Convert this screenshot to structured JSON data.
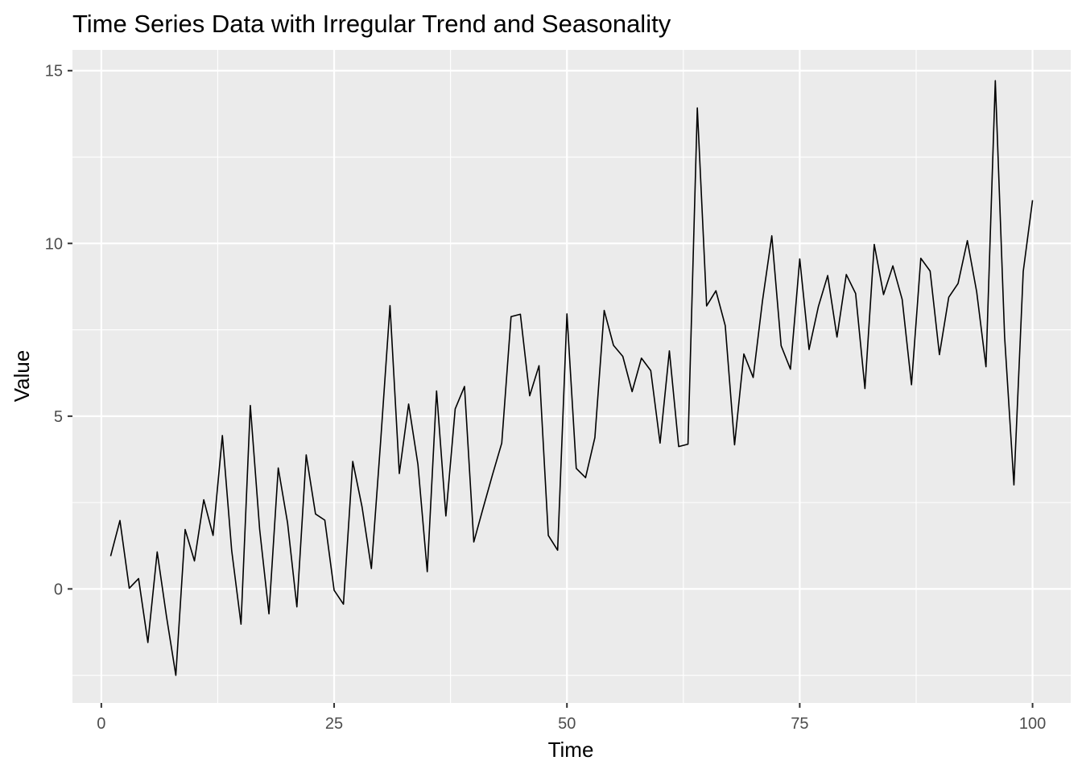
{
  "chart_data": {
    "type": "line",
    "title": "Time Series Data with Irregular Trend and Seasonality",
    "xlabel": "Time",
    "ylabel": "Value",
    "xlim": [
      -3.1,
      104.1
    ],
    "ylim": [
      -3.3,
      15.6
    ],
    "x_ticks": [
      0,
      25,
      50,
      75,
      100
    ],
    "x_tick_labels": [
      "0",
      "25",
      "50",
      "75",
      "100"
    ],
    "y_ticks": [
      0,
      5,
      10,
      15
    ],
    "y_tick_labels": [
      "0",
      "5",
      "10",
      "15"
    ],
    "grid": true,
    "colors": {
      "panel": "#ebebeb",
      "grid": "#ffffff",
      "line": "#000000",
      "tick_text": "#4d4d4d",
      "tick_mark": "#333333"
    },
    "series": [
      {
        "x": [
          1,
          2,
          3,
          4,
          5,
          6,
          7,
          8,
          9,
          10,
          11,
          12,
          13,
          14,
          15,
          16,
          17,
          18,
          19,
          20,
          21,
          22,
          23,
          24,
          25,
          26,
          27,
          28,
          29,
          30,
          31,
          32,
          33,
          34,
          35,
          36,
          37,
          38,
          39,
          40,
          41,
          42,
          43,
          44,
          45,
          46,
          47,
          48,
          49,
          50,
          51,
          52,
          53,
          54,
          55,
          56,
          57,
          58,
          59,
          60,
          61,
          62,
          63,
          64,
          65,
          66,
          67,
          68,
          69,
          70,
          71,
          72,
          73,
          74,
          75,
          76,
          77,
          78,
          79,
          80,
          81,
          82,
          83,
          84,
          85,
          86,
          87,
          88,
          89,
          90,
          91,
          92,
          93,
          94,
          95,
          96,
          97,
          98,
          99,
          100
        ],
        "values": [
          0.95,
          1.98,
          0.02,
          0.3,
          -1.55,
          1.07,
          -0.8,
          -2.5,
          1.72,
          0.81,
          2.58,
          1.55,
          4.44,
          1.11,
          -1.02,
          5.31,
          1.73,
          -0.72,
          3.5,
          1.91,
          -0.52,
          3.88,
          2.17,
          1.99,
          -0.04,
          -0.44,
          3.69,
          2.37,
          0.59,
          4.29,
          8.2,
          3.34,
          5.35,
          3.6,
          0.5,
          5.73,
          2.11,
          5.21,
          5.86,
          1.36,
          2.34,
          3.3,
          4.22,
          7.88,
          7.95,
          5.59,
          6.46,
          1.55,
          1.12,
          7.96,
          3.49,
          3.22,
          4.38,
          8.06,
          7.05,
          6.73,
          5.71,
          6.68,
          6.32,
          4.22,
          6.89,
          4.12,
          4.19,
          13.92,
          8.19,
          8.63,
          7.62,
          4.17,
          6.8,
          6.12,
          8.34,
          10.22,
          7.04,
          6.36,
          9.55,
          6.93,
          8.17,
          9.07,
          7.29,
          9.1,
          8.55,
          5.8,
          9.97,
          8.52,
          9.35,
          8.38,
          5.91,
          9.57,
          9.2,
          6.78,
          8.44,
          8.84,
          10.08,
          8.6,
          6.43,
          14.71,
          7.3,
          3.01,
          9.19,
          11.25
        ]
      }
    ]
  }
}
